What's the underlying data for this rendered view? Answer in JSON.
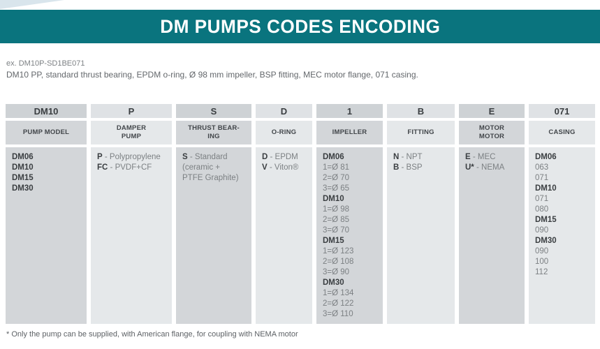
{
  "header": {
    "title": "DM PUMPS CODES ENCODING"
  },
  "example": {
    "code": "ex. DM10P-SD1BE071",
    "description": "DM10 PP, standard thrust bearing, EPDM o-ring, Ø 98 mm impeller, BSP fitting, MEC motor flange, 071 casing."
  },
  "table": {
    "columns": [
      {
        "code": "DM10",
        "label": "PUMP MODEL",
        "lines": [
          {
            "b": "DM06"
          },
          {
            "b": "DM10"
          },
          {
            "b": "DM15"
          },
          {
            "b": "DM30"
          }
        ]
      },
      {
        "code": "P",
        "label": "DAMPER\nPUMP",
        "lines": [
          {
            "b": "P",
            "t": "- Polypropylene"
          },
          {
            "b": "FC",
            "t": "- PVDF+CF"
          }
        ]
      },
      {
        "code": "S",
        "label": "THRUST BEAR-\nING",
        "lines": [
          {
            "b": "S",
            "t": "- Standard"
          },
          {
            "t": "(ceramic +"
          },
          {
            "t": "PTFE Graphite)"
          }
        ]
      },
      {
        "code": "D",
        "label": "O-RING",
        "lines": [
          {
            "b": "D",
            "t": "- EPDM"
          },
          {
            "b": "V",
            "t": "- Viton®"
          }
        ]
      },
      {
        "code": "1",
        "label": "IMPELLER",
        "lines": [
          {
            "b": "DM06"
          },
          {
            "t": "1=Ø 81"
          },
          {
            "t": "2=Ø 70"
          },
          {
            "t": "3=Ø 65"
          },
          {
            "b": "DM10"
          },
          {
            "t": "1=Ø 98"
          },
          {
            "t": "2=Ø 85"
          },
          {
            "t": "3=Ø 70"
          },
          {
            "b": "DM15"
          },
          {
            "t": "1=Ø 123"
          },
          {
            "t": "2=Ø 108"
          },
          {
            "t": "3=Ø 90"
          },
          {
            "b": "DM30"
          },
          {
            "t": "1=Ø 134"
          },
          {
            "t": "2=Ø 122"
          },
          {
            "t": "3=Ø 110"
          }
        ]
      },
      {
        "code": "B",
        "label": "FITTING",
        "lines": [
          {
            "b": "N",
            "t": "- NPT"
          },
          {
            "b": "B",
            "t": "- BSP"
          }
        ]
      },
      {
        "code": "E",
        "label": "MOTOR\nMOTOR",
        "lines": [
          {
            "b": "E",
            "t": "- MEC"
          },
          {
            "b": "U*",
            "t": "- NEMA"
          }
        ]
      },
      {
        "code": "071",
        "label": "CASING",
        "lines": [
          {
            "b": "DM06"
          },
          {
            "t": "063"
          },
          {
            "t": "071"
          },
          {
            "b": "DM10"
          },
          {
            "t": "071"
          },
          {
            "t": "080"
          },
          {
            "b": "DM15"
          },
          {
            "t": "090"
          },
          {
            "b": "DM30"
          },
          {
            "t": "090"
          },
          {
            "t": "100"
          },
          {
            "t": "112"
          }
        ]
      }
    ]
  },
  "footnote": "* Only the pump can be supplied, with American flange, for coupling with NEMA motor",
  "colors": {
    "teal": "#0a747e",
    "column_dark": "#d3d6d9",
    "column_light": "#e5e8ea",
    "bold_text": "#3a3e41",
    "regular_text": "#7c8083",
    "corner_decoration": "#d9e5ec"
  }
}
